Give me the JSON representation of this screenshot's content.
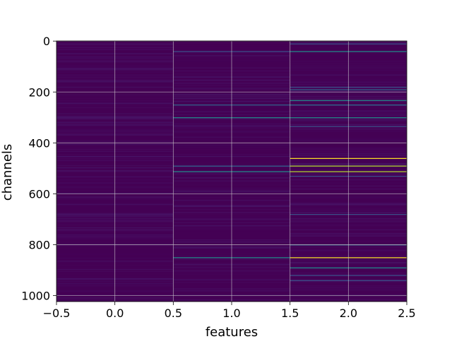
{
  "chart_data": {
    "type": "heatmap",
    "title": "",
    "xlabel": "features",
    "ylabel": "channels",
    "x_ticks": [
      "−0.5",
      "0.0",
      "0.5",
      "1.0",
      "1.5",
      "2.0",
      "2.5"
    ],
    "x_tick_values": [
      -0.5,
      0.0,
      0.5,
      1.0,
      1.5,
      2.0,
      2.5
    ],
    "y_ticks": [
      "0",
      "200",
      "400",
      "600",
      "800",
      "1000"
    ],
    "y_tick_values": [
      0,
      200,
      400,
      600,
      800,
      1000
    ],
    "xlim": [
      -0.5,
      2.5
    ],
    "ylim": [
      1023.5,
      -0.5
    ],
    "y_inverted": true,
    "grid": true,
    "colormap": "viridis",
    "columns": [
      0,
      1,
      2
    ],
    "n_channels": 1024,
    "background_color": "#440154",
    "bright_rows": [
      {
        "column": 1,
        "channel": 40,
        "color": "#3b528b"
      },
      {
        "column": 1,
        "channel": 250,
        "color": "#31688e"
      },
      {
        "column": 1,
        "channel": 300,
        "color": "#21918c"
      },
      {
        "column": 1,
        "channel": 490,
        "color": "#31688e"
      },
      {
        "column": 1,
        "channel": 512,
        "color": "#21918c"
      },
      {
        "column": 1,
        "channel": 850,
        "color": "#21918c"
      },
      {
        "column": 2,
        "channel": 10,
        "color": "#3b528b"
      },
      {
        "column": 2,
        "channel": 40,
        "color": "#21918c"
      },
      {
        "column": 2,
        "channel": 180,
        "color": "#3b528b"
      },
      {
        "column": 2,
        "channel": 190,
        "color": "#31688e"
      },
      {
        "column": 2,
        "channel": 232,
        "color": "#21918c"
      },
      {
        "column": 2,
        "channel": 250,
        "color": "#2c728e"
      },
      {
        "column": 2,
        "channel": 300,
        "color": "#21918c"
      },
      {
        "column": 2,
        "channel": 335,
        "color": "#3b528b"
      },
      {
        "column": 2,
        "channel": 460,
        "color": "#fde725"
      },
      {
        "column": 2,
        "channel": 490,
        "color": "#b5de2b"
      },
      {
        "column": 2,
        "channel": 512,
        "color": "#b5de2b"
      },
      {
        "column": 2,
        "channel": 530,
        "color": "#3b528b"
      },
      {
        "column": 2,
        "channel": 680,
        "color": "#3b528b"
      },
      {
        "column": 2,
        "channel": 800,
        "color": "#31688e"
      },
      {
        "column": 2,
        "channel": 850,
        "color": "#fde725"
      },
      {
        "column": 2,
        "channel": 890,
        "color": "#21918c"
      },
      {
        "column": 2,
        "channel": 920,
        "color": "#3b528b"
      },
      {
        "column": 2,
        "channel": 940,
        "color": "#3b528b"
      }
    ]
  }
}
